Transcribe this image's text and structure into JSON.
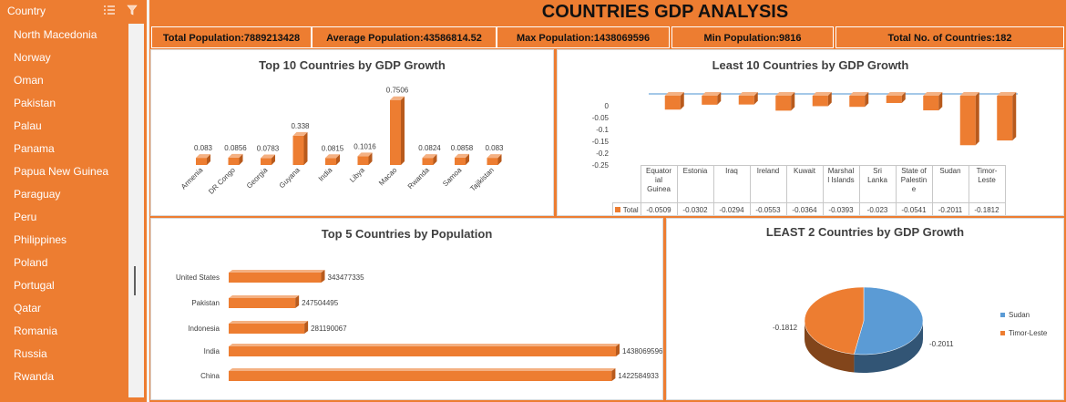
{
  "dashboard": {
    "title": "COUNTRIES GDP ANALYSIS"
  },
  "slicer": {
    "title": "Country",
    "multiselect_icon": "multi-select-icon",
    "clear_icon": "clear-filter-icon",
    "items": [
      "North Macedonia",
      "Norway",
      "Oman",
      "Pakistan",
      "Palau",
      "Panama",
      "Papua New Guinea",
      "Paraguay",
      "Peru",
      "Philippines",
      "Poland",
      "Portugal",
      "Qatar",
      "Romania",
      "Russia",
      "Rwanda"
    ]
  },
  "kpis": [
    {
      "label": "Total Population:7889213428"
    },
    {
      "label": "Average Population:43586814.52"
    },
    {
      "label": "Max Population:1438069596"
    },
    {
      "label": "Min Population:9816"
    },
    {
      "label": "Total No. of Countries:182"
    }
  ],
  "colors": {
    "accent": "#ed7d31",
    "accent_dark": "#b85a1c",
    "pie_blue": "#5b9bd5",
    "pie_blue_dark": "#2e4a6d",
    "border": "#d9d9d9"
  },
  "chart_data": [
    {
      "type": "bar",
      "title": "Top 10 Countries by GDP Growth",
      "categories": [
        "Armenia",
        "DR Congo",
        "Georgia",
        "Guyana",
        "India",
        "Libya",
        "Macao",
        "Rwanda",
        "Samoa",
        "Tajikistan"
      ],
      "values": [
        0.083,
        0.0856,
        0.0783,
        0.338,
        0.0815,
        0.1016,
        0.7506,
        0.0824,
        0.0858,
        0.083
      ],
      "data_labels": [
        "0.083",
        "0.0856",
        "0.0783",
        "0.338",
        "0.0815",
        "0.1016",
        "0.7506",
        "0.0824",
        "0.0858",
        "0.083"
      ],
      "ylim": [
        0,
        0.8
      ]
    },
    {
      "type": "bar",
      "title": "Least 10 Countries by GDP Growth",
      "categories": [
        "Equatorial Guinea",
        "Estonia",
        "Iraq",
        "Ireland",
        "Kuwait",
        "Marshall Islands",
        "Sri Lanka",
        "State of Palestine",
        "Sudan",
        "Timor-Leste"
      ],
      "category_labels": [
        [
          "Equator",
          "ial",
          "Guinea"
        ],
        [
          "Estonia"
        ],
        [
          "Iraq"
        ],
        [
          "Ireland"
        ],
        [
          "Kuwait"
        ],
        [
          "Marshal",
          "l Islands"
        ],
        [
          "Sri",
          "Lanka"
        ],
        [
          "State of",
          "Palestin",
          "e"
        ],
        [
          "Sudan"
        ],
        [
          "Timor-",
          "Leste"
        ]
      ],
      "values": [
        -0.0509,
        -0.0302,
        -0.0294,
        -0.0553,
        -0.0364,
        -0.0393,
        -0.023,
        -0.0541,
        -0.2011,
        -0.1812
      ],
      "value_labels": [
        "-0.0509",
        "-0.0302",
        "-0.0294",
        "-0.0553",
        "-0.0364",
        "-0.0393",
        "-0.023",
        "-0.0541",
        "-0.2011",
        "-0.1812"
      ],
      "series_name": "Total",
      "yticks": [
        "0",
        "-0.05",
        "-0.1",
        "-0.15",
        "-0.2",
        "-0.25"
      ],
      "ylim": [
        -0.25,
        0.02
      ]
    },
    {
      "type": "bar",
      "orientation": "horizontal",
      "title": "Top 5  Countries by Population",
      "categories": [
        "United States",
        "Pakistan",
        "Indonesia",
        "India",
        "China"
      ],
      "values": [
        343477335,
        247504495,
        281190067,
        1438069596,
        1422584933
      ],
      "data_labels": [
        "343477335",
        "247504495",
        "281190067",
        "1438069596",
        "1422584933"
      ],
      "xlim": [
        0,
        1438069596
      ]
    },
    {
      "type": "pie",
      "title": "LEAST 2 Countries by GDP Growth",
      "categories": [
        "Sudan",
        "Timor-Leste"
      ],
      "values": [
        -0.2011,
        -0.1812
      ],
      "data_labels": [
        "-0.2011",
        "-0.1812"
      ],
      "legend": "right"
    }
  ]
}
